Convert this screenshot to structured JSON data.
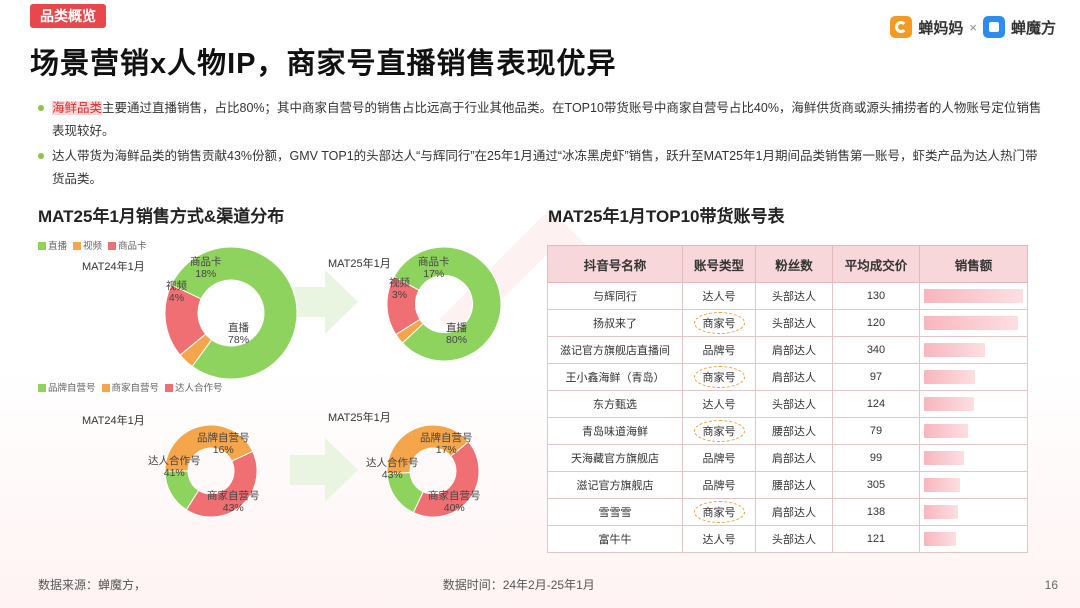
{
  "tag": "品类概览",
  "brand": {
    "a": "蝉妈妈",
    "times": "×",
    "b": "蝉魔方"
  },
  "title": "场景营销x人物IP，商家号直播销售表现优异",
  "bullets": [
    {
      "highlight": "海鲜品类",
      "text": "主要通过直播销售，占比80%；其中商家自营号的销售占比远高于行业其他品类。在TOP10带货账号中商家自营号占比40%，海鲜供货商或源头捕捞者的人物账号定位销售表现较好。"
    },
    {
      "text": "达人带货为海鲜品类的销售贡献43%份额，GMV TOP1的头部达人“与辉同行”在25年1月通过“冰冻黑虎虾”销售，跃升至MAT25年1月期间品类销售第一账号，虾类产品为达人热门带货品类。"
    }
  ],
  "left_title": "MAT25年1月销售方式&渠道分布",
  "right_title": "MAT25年1月TOP10带货账号表",
  "legend1": [
    "直播",
    "视频",
    "商品卡"
  ],
  "legend2": [
    "品牌自营号",
    "商家自营号",
    "达人合作号"
  ],
  "colors": {
    "green": "#8fd35f",
    "orange": "#f5a54a",
    "red": "#ef6f73",
    "accent": "#e8484b"
  },
  "chart_data": [
    {
      "type": "pie",
      "title": "MAT24年1月",
      "categories": [
        "直播",
        "视频",
        "商品卡"
      ],
      "values": [
        78,
        4,
        18
      ]
    },
    {
      "type": "pie",
      "title": "MAT25年1月",
      "categories": [
        "直播",
        "视频",
        "商品卡"
      ],
      "values": [
        80,
        3,
        17
      ]
    },
    {
      "type": "pie",
      "title": "MAT24年1月",
      "categories": [
        "品牌自营号",
        "商家自营号",
        "达人合作号"
      ],
      "values": [
        16,
        43,
        41
      ]
    },
    {
      "type": "pie",
      "title": "MAT25年1月",
      "categories": [
        "品牌自营号",
        "商家自营号",
        "达人合作号"
      ],
      "values": [
        17,
        40,
        43
      ]
    },
    {
      "type": "table",
      "title": "MAT25年1月TOP10带货账号表",
      "columns": [
        "抖音号名称",
        "账号类型",
        "粉丝数",
        "平均成交价",
        "销售额"
      ],
      "rows": [
        [
          "与辉同行",
          "达人号",
          "头部达人",
          130
        ],
        [
          "扬叔来了",
          "商家号",
          "头部达人",
          120
        ],
        [
          "滋记官方旗舰店直播间",
          "品牌号",
          "肩部达人",
          340
        ],
        [
          "王小鑫海鲜（青岛）",
          "商家号",
          "肩部达人",
          97
        ],
        [
          "东方甄选",
          "达人号",
          "头部达人",
          124
        ],
        [
          "青岛味道海鲜",
          "商家号",
          "腰部达人",
          79
        ],
        [
          "天海藏官方旗舰店",
          "品牌号",
          "肩部达人",
          99
        ],
        [
          "滋记官方旗舰店",
          "品牌号",
          "腰部达人",
          305
        ],
        [
          "雪雪雪",
          "商家号",
          "肩部达人",
          138
        ],
        [
          "富牛牛",
          "达人号",
          "头部达人",
          121
        ]
      ],
      "sales_bar_fraction": [
        1.0,
        0.95,
        0.62,
        0.52,
        0.5,
        0.44,
        0.4,
        0.36,
        0.34,
        0.32
      ],
      "circled_account_type": "商家号"
    }
  ],
  "footer": {
    "source": "数据来源：蝉魔方，",
    "time": "数据时间：24年2月-25年1月"
  },
  "page_no": "16"
}
